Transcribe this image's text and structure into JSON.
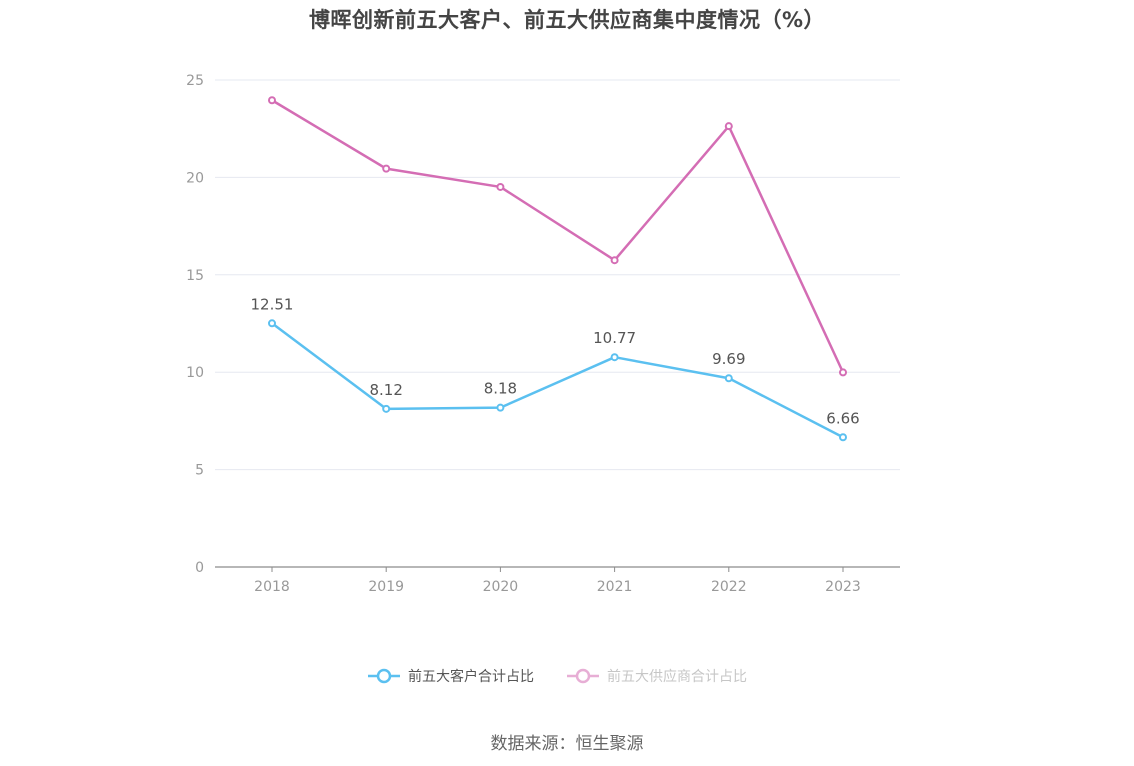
{
  "chart_data": {
    "type": "line",
    "title": "博晖创新前五大客户、前五大供应商集中度情况（%）",
    "x": [
      "2018",
      "2019",
      "2020",
      "2021",
      "2022",
      "2023"
    ],
    "series": [
      {
        "name": "前五大客户合计占比",
        "values": [
          12.51,
          8.12,
          8.18,
          10.77,
          9.69,
          6.66
        ],
        "color": "#5bc0f0",
        "show_labels": true
      },
      {
        "name": "前五大供应商合计占比",
        "values": [
          23.96,
          20.45,
          19.51,
          15.75,
          22.63,
          9.99
        ],
        "color": "#d46db4",
        "show_labels": false
      }
    ],
    "ylim": [
      0,
      25
    ],
    "yticks": [
      0,
      5,
      10,
      15,
      20,
      25
    ],
    "grid": true,
    "legend_position": "bottom"
  },
  "legend": {
    "inactive_text_color": "#999999",
    "active_text_color": "#555555"
  },
  "source": "数据来源：恒生聚源"
}
